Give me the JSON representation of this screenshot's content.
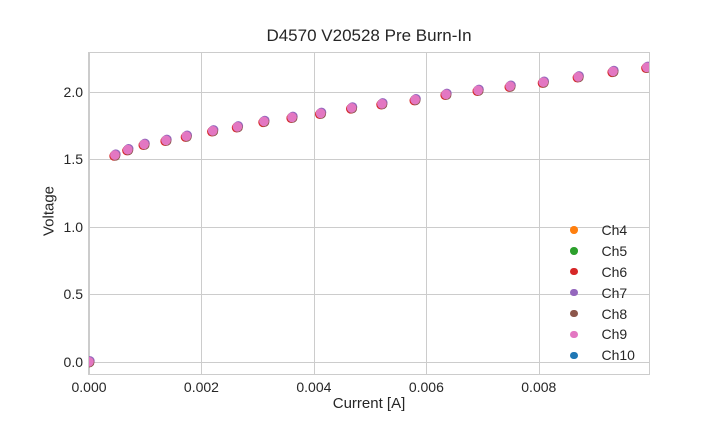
{
  "figure": {
    "background": "#ffffff",
    "text_color": "#262626"
  },
  "chart_data": {
    "type": "scatter",
    "title": "D4570 V20528 Pre Burn-In",
    "xlabel": "Current [A]",
    "ylabel": "Voltage",
    "xlim": [
      0,
      0.00996
    ],
    "ylim": [
      -0.09,
      2.286
    ],
    "xticks": {
      "values": [
        0,
        0.002,
        0.004,
        0.006,
        0.008
      ],
      "labels": [
        "0.000",
        "0.002",
        "0.004",
        "0.006",
        "0.008"
      ]
    },
    "yticks": {
      "values": [
        0,
        0.5,
        1.0,
        1.5,
        2.0
      ],
      "labels": [
        "0.0",
        "0.5",
        "1.0",
        "1.5",
        "2.0"
      ]
    },
    "grid": true,
    "grid_color": "#cccccc",
    "spine_color": "#cccccc",
    "legend_position": "lower right",
    "series_overlap": true,
    "top_series": "Ch9",
    "marker_diameter_px": 10,
    "x": [
      0.0,
      0.00046,
      0.00069,
      0.00098,
      0.00137,
      0.00173,
      0.0022,
      0.00264,
      0.00311,
      0.00361,
      0.00412,
      0.00467,
      0.00521,
      0.0058,
      0.00635,
      0.00692,
      0.00749,
      0.00808,
      0.0087,
      0.00932,
      0.00992
    ],
    "series": [
      {
        "name": "Ch4",
        "color": "#ff7f0e",
        "values": [
          0.0,
          1.53,
          1.57,
          1.61,
          1.64,
          1.67,
          1.71,
          1.74,
          1.78,
          1.81,
          1.84,
          1.88,
          1.91,
          1.94,
          1.98,
          2.01,
          2.04,
          2.07,
          2.11,
          2.15,
          2.18
        ]
      },
      {
        "name": "Ch5",
        "color": "#2ca02c",
        "values": [
          0.0,
          1.53,
          1.57,
          1.61,
          1.64,
          1.67,
          1.71,
          1.74,
          1.78,
          1.81,
          1.84,
          1.88,
          1.91,
          1.94,
          1.98,
          2.01,
          2.04,
          2.07,
          2.11,
          2.15,
          2.18
        ]
      },
      {
        "name": "Ch6",
        "color": "#d62728",
        "values": [
          0.0,
          1.53,
          1.57,
          1.61,
          1.64,
          1.67,
          1.71,
          1.74,
          1.78,
          1.81,
          1.84,
          1.88,
          1.91,
          1.94,
          1.98,
          2.01,
          2.04,
          2.07,
          2.11,
          2.15,
          2.18
        ]
      },
      {
        "name": "Ch7",
        "color": "#9467bd",
        "values": [
          0.0,
          1.53,
          1.57,
          1.61,
          1.64,
          1.67,
          1.71,
          1.74,
          1.78,
          1.81,
          1.84,
          1.88,
          1.91,
          1.94,
          1.98,
          2.01,
          2.04,
          2.07,
          2.11,
          2.15,
          2.18
        ]
      },
      {
        "name": "Ch8",
        "color": "#8c564b",
        "values": [
          0.0,
          1.53,
          1.57,
          1.61,
          1.64,
          1.67,
          1.71,
          1.74,
          1.78,
          1.81,
          1.84,
          1.88,
          1.91,
          1.94,
          1.98,
          2.01,
          2.04,
          2.07,
          2.11,
          2.15,
          2.18
        ]
      },
      {
        "name": "Ch9",
        "color": "#e377c2",
        "values": [
          0.0,
          1.53,
          1.57,
          1.61,
          1.64,
          1.67,
          1.71,
          1.74,
          1.78,
          1.81,
          1.84,
          1.88,
          1.91,
          1.94,
          1.98,
          2.01,
          2.04,
          2.07,
          2.11,
          2.15,
          2.18
        ]
      },
      {
        "name": "Ch10",
        "color": "#1f77b4",
        "values": [
          0.0,
          1.53,
          1.57,
          1.61,
          1.64,
          1.67,
          1.71,
          1.74,
          1.78,
          1.81,
          1.84,
          1.88,
          1.91,
          1.94,
          1.98,
          2.01,
          2.04,
          2.07,
          2.11,
          2.15,
          2.18
        ]
      }
    ]
  }
}
